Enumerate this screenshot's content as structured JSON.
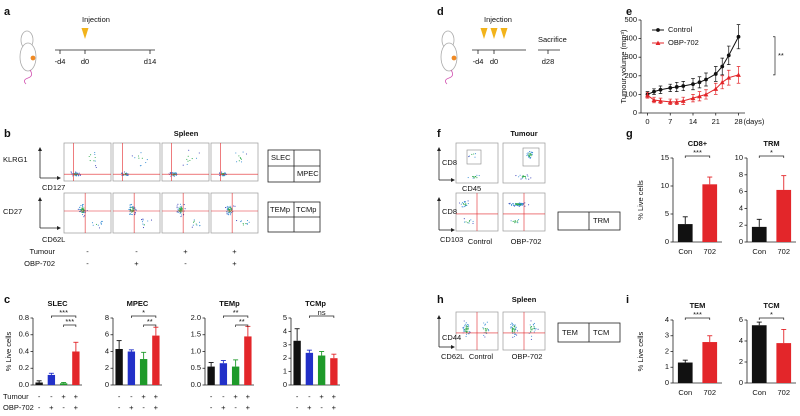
{
  "panel_labels": [
    "a",
    "b",
    "c",
    "d",
    "e",
    "f",
    "g",
    "h",
    "i"
  ],
  "a": {
    "injection": "Injection",
    "ticks": [
      "-d4",
      "d0",
      "d14"
    ]
  },
  "d": {
    "injection": "Injection",
    "sacrifice": "Sacrifice",
    "ticks": [
      "-d4",
      "d0",
      "d28"
    ]
  },
  "b": {
    "title": "Spleen",
    "axes": [
      "KLRG1",
      "CD127",
      "CD27",
      "CD62L"
    ],
    "gates": [
      [
        "SLEC",
        "MPEC"
      ],
      [
        "TEMp",
        "TCMp"
      ]
    ],
    "rows": [
      {
        "name": "Tumour",
        "labels": [
          "-",
          "-",
          "+",
          "+"
        ]
      },
      {
        "name": "OBP-702",
        "labels": [
          "-",
          "+",
          "-",
          "+"
        ]
      }
    ]
  },
  "f": {
    "title": "Tumour",
    "axes": [
      "CD8",
      "CD45",
      "CD8",
      "CD103"
    ],
    "groups": [
      "Control",
      "OBP-702"
    ],
    "gates": [
      "TRM"
    ]
  },
  "h": {
    "title": "Spleen",
    "axes": [
      "CD44",
      "CD62L"
    ],
    "groups": [
      "Control",
      "OBP-702"
    ],
    "gates": [
      "TEM",
      "TCM"
    ]
  },
  "chart_data": [
    {
      "type": "line",
      "y_label": "Tumour volume (mm³)",
      "x_label": "(days)",
      "x": [
        0,
        2,
        4,
        7,
        9,
        11,
        14,
        16,
        18,
        21,
        23,
        25,
        28
      ],
      "xlim": [
        -2,
        30
      ],
      "xticks": [
        0,
        7,
        14,
        21,
        28
      ],
      "ylim": [
        0,
        500
      ],
      "yticks": [
        0,
        100,
        200,
        300,
        400,
        500
      ],
      "legend": "upper-left",
      "significance": "**",
      "series": [
        {
          "name": "Control",
          "color": "#111111",
          "marker": "circle",
          "values": [
            100,
            115,
            125,
            135,
            140,
            145,
            155,
            165,
            180,
            210,
            250,
            310,
            410
          ],
          "errors": [
            15,
            15,
            20,
            20,
            25,
            25,
            30,
            30,
            35,
            40,
            45,
            50,
            65
          ]
        },
        {
          "name": "OBP-702",
          "color": "#e3262a",
          "marker": "triangle",
          "values": [
            95,
            70,
            65,
            60,
            60,
            65,
            80,
            90,
            100,
            130,
            165,
            190,
            205
          ],
          "errors": [
            15,
            15,
            15,
            15,
            15,
            20,
            20,
            25,
            25,
            30,
            35,
            40,
            45
          ]
        }
      ]
    },
    {
      "type": "bar",
      "title": "SLEC",
      "y_label": "% Live cells",
      "row_names": [
        "Tumour",
        "OBP-702"
      ],
      "category_rows": [
        [
          "-",
          "-",
          "+",
          "+"
        ],
        [
          "-",
          "+",
          "-",
          "+"
        ]
      ],
      "values": [
        0.03,
        0.12,
        0.02,
        0.4
      ],
      "errors": [
        0.02,
        0.02,
        0.01,
        0.11
      ],
      "colors": [
        "#111111",
        "#2230c8",
        "#1e9a2a",
        "#e3262a"
      ],
      "ylim": [
        0,
        0.8
      ],
      "yticks": [
        {
          "value": 0,
          "label": "0.0"
        },
        {
          "value": 0.2,
          "label": "0.2"
        },
        {
          "value": 0.4,
          "label": "0.4"
        },
        {
          "value": 0.6,
          "label": "0.6"
        },
        {
          "value": 0.8,
          "label": "0.8"
        }
      ],
      "significance": [
        {
          "from": 1,
          "to": 3,
          "label": "***"
        },
        {
          "from": 2,
          "to": 3,
          "label": "***"
        }
      ]
    },
    {
      "type": "bar",
      "title": "MPEC",
      "category_rows": [
        [
          "-",
          "-",
          "+",
          "+"
        ],
        [
          "-",
          "+",
          "-",
          "+"
        ]
      ],
      "values": [
        4.3,
        4.0,
        3.1,
        5.9
      ],
      "errors": [
        1.0,
        0.2,
        0.8,
        1.0
      ],
      "colors": [
        "#111111",
        "#2230c8",
        "#1e9a2a",
        "#e3262a"
      ],
      "ylim": [
        0,
        8
      ],
      "yticks": [
        0,
        2,
        4,
        6,
        8
      ],
      "significance": [
        {
          "from": 1,
          "to": 3,
          "label": "*"
        },
        {
          "from": 2,
          "to": 3,
          "label": "**"
        }
      ]
    },
    {
      "type": "bar",
      "title": "TEMp",
      "category_rows": [
        [
          "-",
          "-",
          "+",
          "+"
        ],
        [
          "-",
          "+",
          "-",
          "+"
        ]
      ],
      "values": [
        0.55,
        0.65,
        0.55,
        1.45
      ],
      "errors": [
        0.12,
        0.08,
        0.2,
        0.3
      ],
      "colors": [
        "#111111",
        "#2230c8",
        "#1e9a2a",
        "#e3262a"
      ],
      "ylim": [
        0,
        2
      ],
      "yticks": [
        {
          "value": 0,
          "label": "0.0"
        },
        {
          "value": 0.5,
          "label": "0.5"
        },
        {
          "value": 1,
          "label": "1.0"
        },
        {
          "value": 1.5,
          "label": "1.5"
        },
        {
          "value": 2,
          "label": "2.0"
        }
      ],
      "significance": [
        {
          "from": 1,
          "to": 3,
          "label": "**"
        },
        {
          "from": 2,
          "to": 3,
          "label": "**"
        }
      ]
    },
    {
      "type": "bar",
      "title": "TCMp",
      "category_rows": [
        [
          "-",
          "-",
          "+",
          "+"
        ],
        [
          "-",
          "+",
          "-",
          "+"
        ]
      ],
      "values": [
        3.3,
        2.4,
        2.2,
        2.0
      ],
      "errors": [
        0.9,
        0.2,
        0.3,
        0.3
      ],
      "colors": [
        "#111111",
        "#2230c8",
        "#1e9a2a",
        "#e3262a"
      ],
      "ylim": [
        0,
        5
      ],
      "yticks": [
        0,
        1,
        2,
        3,
        4,
        5
      ],
      "significance": [
        {
          "from": 1,
          "to": 3,
          "label": "ns"
        }
      ]
    },
    {
      "type": "bar",
      "title": "CD8+",
      "y_label": "% Live cells",
      "categories": [
        "Con",
        "702"
      ],
      "values": [
        3.2,
        10.3
      ],
      "errors": [
        1.3,
        1.3
      ],
      "colors": [
        "#111111",
        "#e3262a"
      ],
      "ylim": [
        0,
        15
      ],
      "yticks": [
        0,
        5,
        10,
        15
      ],
      "significance": [
        {
          "from": 0,
          "to": 1,
          "label": "***"
        }
      ]
    },
    {
      "type": "bar",
      "title": "TRM",
      "categories": [
        "Con",
        "702"
      ],
      "values": [
        1.8,
        6.2
      ],
      "errors": [
        0.9,
        1.7
      ],
      "colors": [
        "#111111",
        "#e3262a"
      ],
      "ylim": [
        0,
        10
      ],
      "yticks": [
        0,
        2,
        4,
        6,
        8,
        10
      ],
      "significance": [
        {
          "from": 0,
          "to": 1,
          "label": "*"
        }
      ]
    },
    {
      "type": "bar",
      "title": "TEM",
      "y_label": "% Live cells",
      "categories": [
        "Con",
        "702"
      ],
      "values": [
        1.3,
        2.6
      ],
      "errors": [
        0.15,
        0.4
      ],
      "colors": [
        "#111111",
        "#e3262a"
      ],
      "ylim": [
        0,
        4
      ],
      "yticks": [
        0,
        1,
        2,
        3,
        4
      ],
      "significance": [
        {
          "from": 0,
          "to": 1,
          "label": "***"
        }
      ]
    },
    {
      "type": "bar",
      "title": "TCM",
      "categories": [
        "Con",
        "702"
      ],
      "values": [
        5.5,
        3.8
      ],
      "errors": [
        0.3,
        1.3
      ],
      "colors": [
        "#111111",
        "#e3262a"
      ],
      "ylim": [
        0,
        6
      ],
      "yticks": [
        0,
        2,
        4,
        6
      ],
      "significance": [
        {
          "from": 0,
          "to": 1,
          "label": "*"
        }
      ]
    }
  ]
}
